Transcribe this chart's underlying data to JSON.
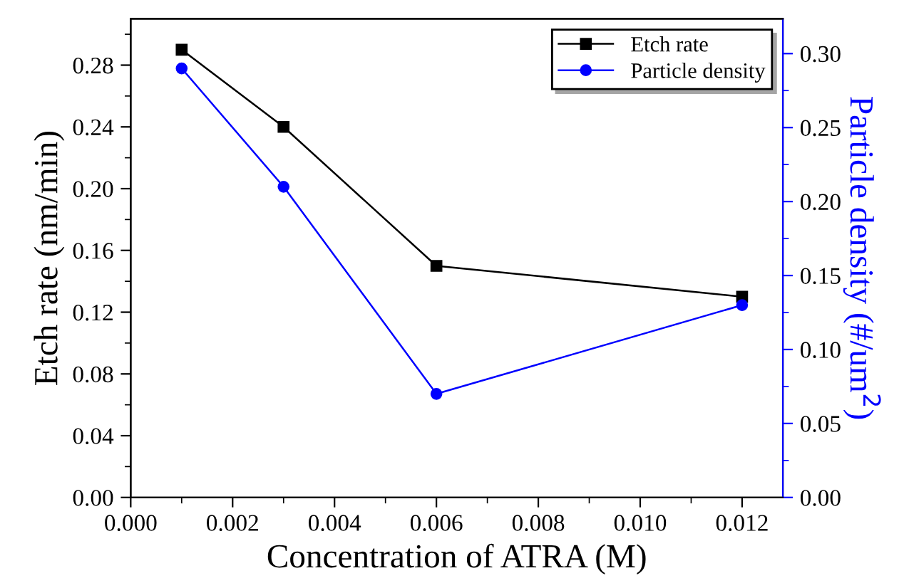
{
  "chart_data": {
    "type": "line",
    "xlabel": "Concentration of ATRA (M)",
    "ylabel": "Etch rate (nm/min)",
    "y2label": "Particle density (#/um$^{2}$)",
    "x": [
      0.001,
      0.003,
      0.006,
      0.012
    ],
    "series": [
      {
        "name": "Etch rate",
        "color": "#000000",
        "marker": "square",
        "values": [
          0.29,
          0.24,
          0.15,
          0.13
        ]
      },
      {
        "name": "Particle density",
        "color": "#0000ff",
        "marker": "circle",
        "axis": "y2",
        "values": [
          0.29,
          0.21,
          0.07,
          0.13
        ]
      }
    ],
    "xlim": [
      0,
      0.0128
    ],
    "xticks": [
      {
        "value": 0,
        "label": "0.000"
      },
      {
        "value": 0.002,
        "label": "0.002"
      },
      {
        "value": 0.004,
        "label": "0.004"
      },
      {
        "value": 0.006,
        "label": "0.006"
      },
      {
        "value": 0.008,
        "label": "0.008"
      },
      {
        "value": 0.01,
        "label": "0.010"
      },
      {
        "value": 0.012,
        "label": "0.012"
      }
    ],
    "ylim": [
      0,
      0.31
    ],
    "yticks": [
      {
        "value": 0,
        "label": "0.00"
      },
      {
        "value": 0.04,
        "label": "0.04"
      },
      {
        "value": 0.08,
        "label": "0.08"
      },
      {
        "value": 0.12,
        "label": "0.12"
      },
      {
        "value": 0.16,
        "label": "0.16"
      },
      {
        "value": 0.2,
        "label": "0.20"
      },
      {
        "value": 0.24,
        "label": "0.24"
      },
      {
        "value": 0.28,
        "label": "0.28"
      }
    ],
    "y2lim": [
      0,
      0.3235
    ],
    "y2ticks": [
      {
        "value": 0,
        "label": "0.00"
      },
      {
        "value": 0.05,
        "label": "0.05"
      },
      {
        "value": 0.1,
        "label": "0.10"
      },
      {
        "value": 0.15,
        "label": "0.15"
      },
      {
        "value": 0.2,
        "label": "0.20"
      },
      {
        "value": 0.25,
        "label": "0.25"
      },
      {
        "value": 0.3,
        "label": "0.30"
      }
    ],
    "legend": "top right",
    "grid": false,
    "line_style": "solid"
  }
}
